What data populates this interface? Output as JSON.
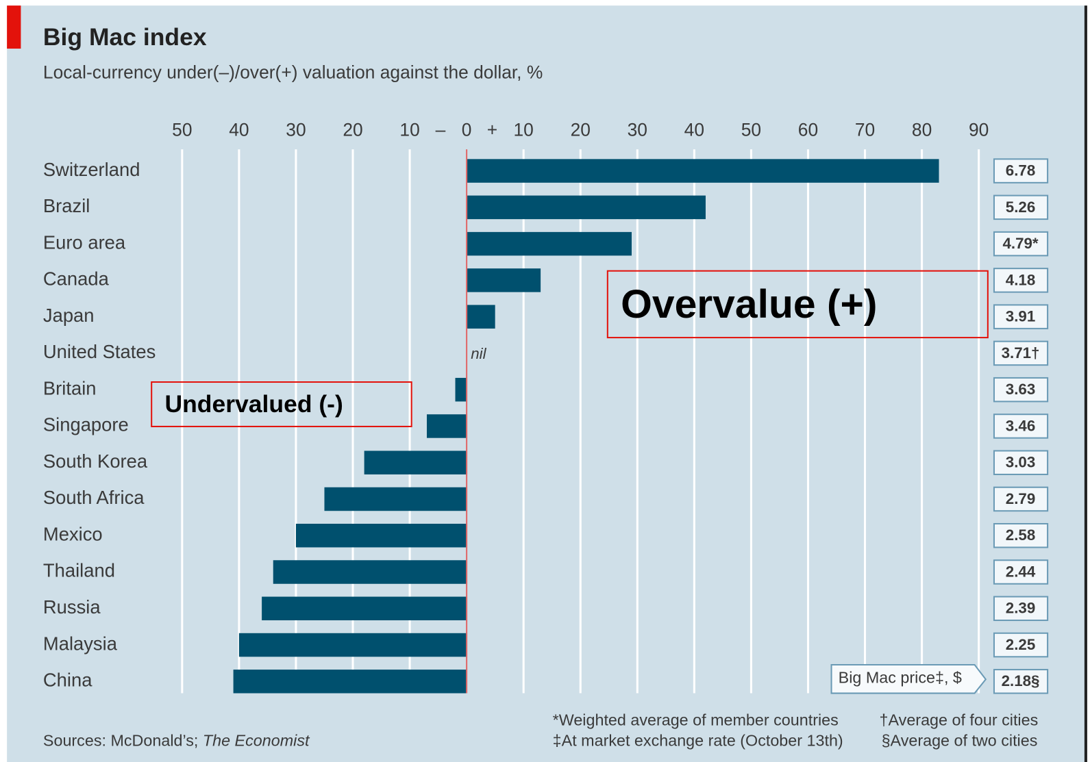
{
  "chart_data": {
    "type": "bar",
    "orientation": "horizontal",
    "title": "Big Mac index",
    "subtitle": "Local-currency under(–)/over(+) valuation against the dollar, %",
    "categories": [
      "Switzerland",
      "Brazil",
      "Euro area",
      "Canada",
      "Japan",
      "United States",
      "Britain",
      "Singapore",
      "South Korea",
      "South Africa",
      "Mexico",
      "Thailand",
      "Russia",
      "Malaysia",
      "China"
    ],
    "values": [
      83,
      42,
      29,
      13,
      5,
      0,
      -2,
      -7,
      -18,
      -25,
      -30,
      -34,
      -36,
      -40,
      -41
    ],
    "value_labels": [
      null,
      null,
      null,
      null,
      null,
      "nil",
      null,
      null,
      null,
      null,
      null,
      null,
      null,
      null,
      null
    ],
    "color": "#00506e",
    "xlim": [
      -50,
      90
    ],
    "xticks": [
      {
        "value": -50,
        "label": "50"
      },
      {
        "value": -40,
        "label": "40"
      },
      {
        "value": -30,
        "label": "30"
      },
      {
        "value": -20,
        "label": "20"
      },
      {
        "value": -10,
        "label": "10"
      },
      0,
      10,
      20,
      30,
      40,
      50,
      60,
      70,
      80,
      90
    ],
    "axis_signs": [
      "–",
      "+"
    ],
    "grid": true,
    "prices": [
      6.78,
      5.26,
      4.79,
      4.18,
      3.91,
      3.71,
      3.63,
      3.46,
      3.03,
      2.79,
      2.58,
      2.44,
      2.39,
      2.25,
      2.18
    ],
    "price_labels": [
      "6.78",
      "5.26",
      "4.79*",
      "4.18",
      "3.91",
      "3.71†",
      "3.63",
      "3.46",
      "3.03",
      "2.79",
      "2.58",
      "2.44",
      "2.39",
      "2.25",
      "2.18§"
    ],
    "price_header": "Big Mac price‡, $",
    "annotations": [
      "Overvalue (+)",
      "Undervalued (-)"
    ],
    "footnotes": [
      "*Weighted average of member countries",
      "†Average of four cities",
      "‡At market exchange rate (October 13th)",
      "§Average of two cities"
    ],
    "source": [
      "Sources: McDonald’s; ",
      "The Economist"
    ]
  }
}
